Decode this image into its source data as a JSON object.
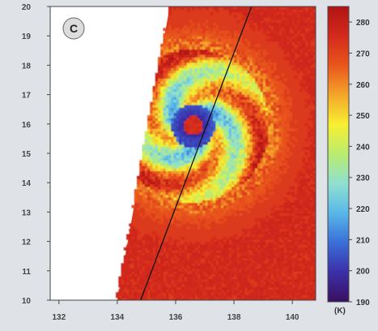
{
  "chart_data": {
    "type": "heatmap",
    "panel_label": "C",
    "x_ticks": [
      132,
      134,
      136,
      138,
      140
    ],
    "y_ticks": [
      10,
      11,
      12,
      13,
      14,
      15,
      16,
      17,
      18,
      19,
      20
    ],
    "xlim": [
      131.7,
      140.8
    ],
    "ylim": [
      10,
      20
    ],
    "colorbar": {
      "unit": "(K)",
      "ticks": [
        190,
        200,
        210,
        220,
        230,
        240,
        250,
        260,
        270,
        280
      ],
      "range": [
        190,
        285
      ],
      "colors": [
        "#3a1060",
        "#3b2fa8",
        "#3a6ed8",
        "#58b7e8",
        "#8fe0d0",
        "#b8ec70",
        "#f7f030",
        "#f4a62a",
        "#e9561c",
        "#d42a1c",
        "#b01414"
      ]
    },
    "storm_center": {
      "lon": 136.6,
      "lat": 15.95
    },
    "eye_temp": 275,
    "swath_edge": {
      "x1": 134.0,
      "y1": 10,
      "x2": 135.8,
      "y2": 20
    },
    "track_line": {
      "x1": 134.8,
      "y1": 10,
      "x2": 138.6,
      "y2": 20
    },
    "background_temp": 272
  }
}
